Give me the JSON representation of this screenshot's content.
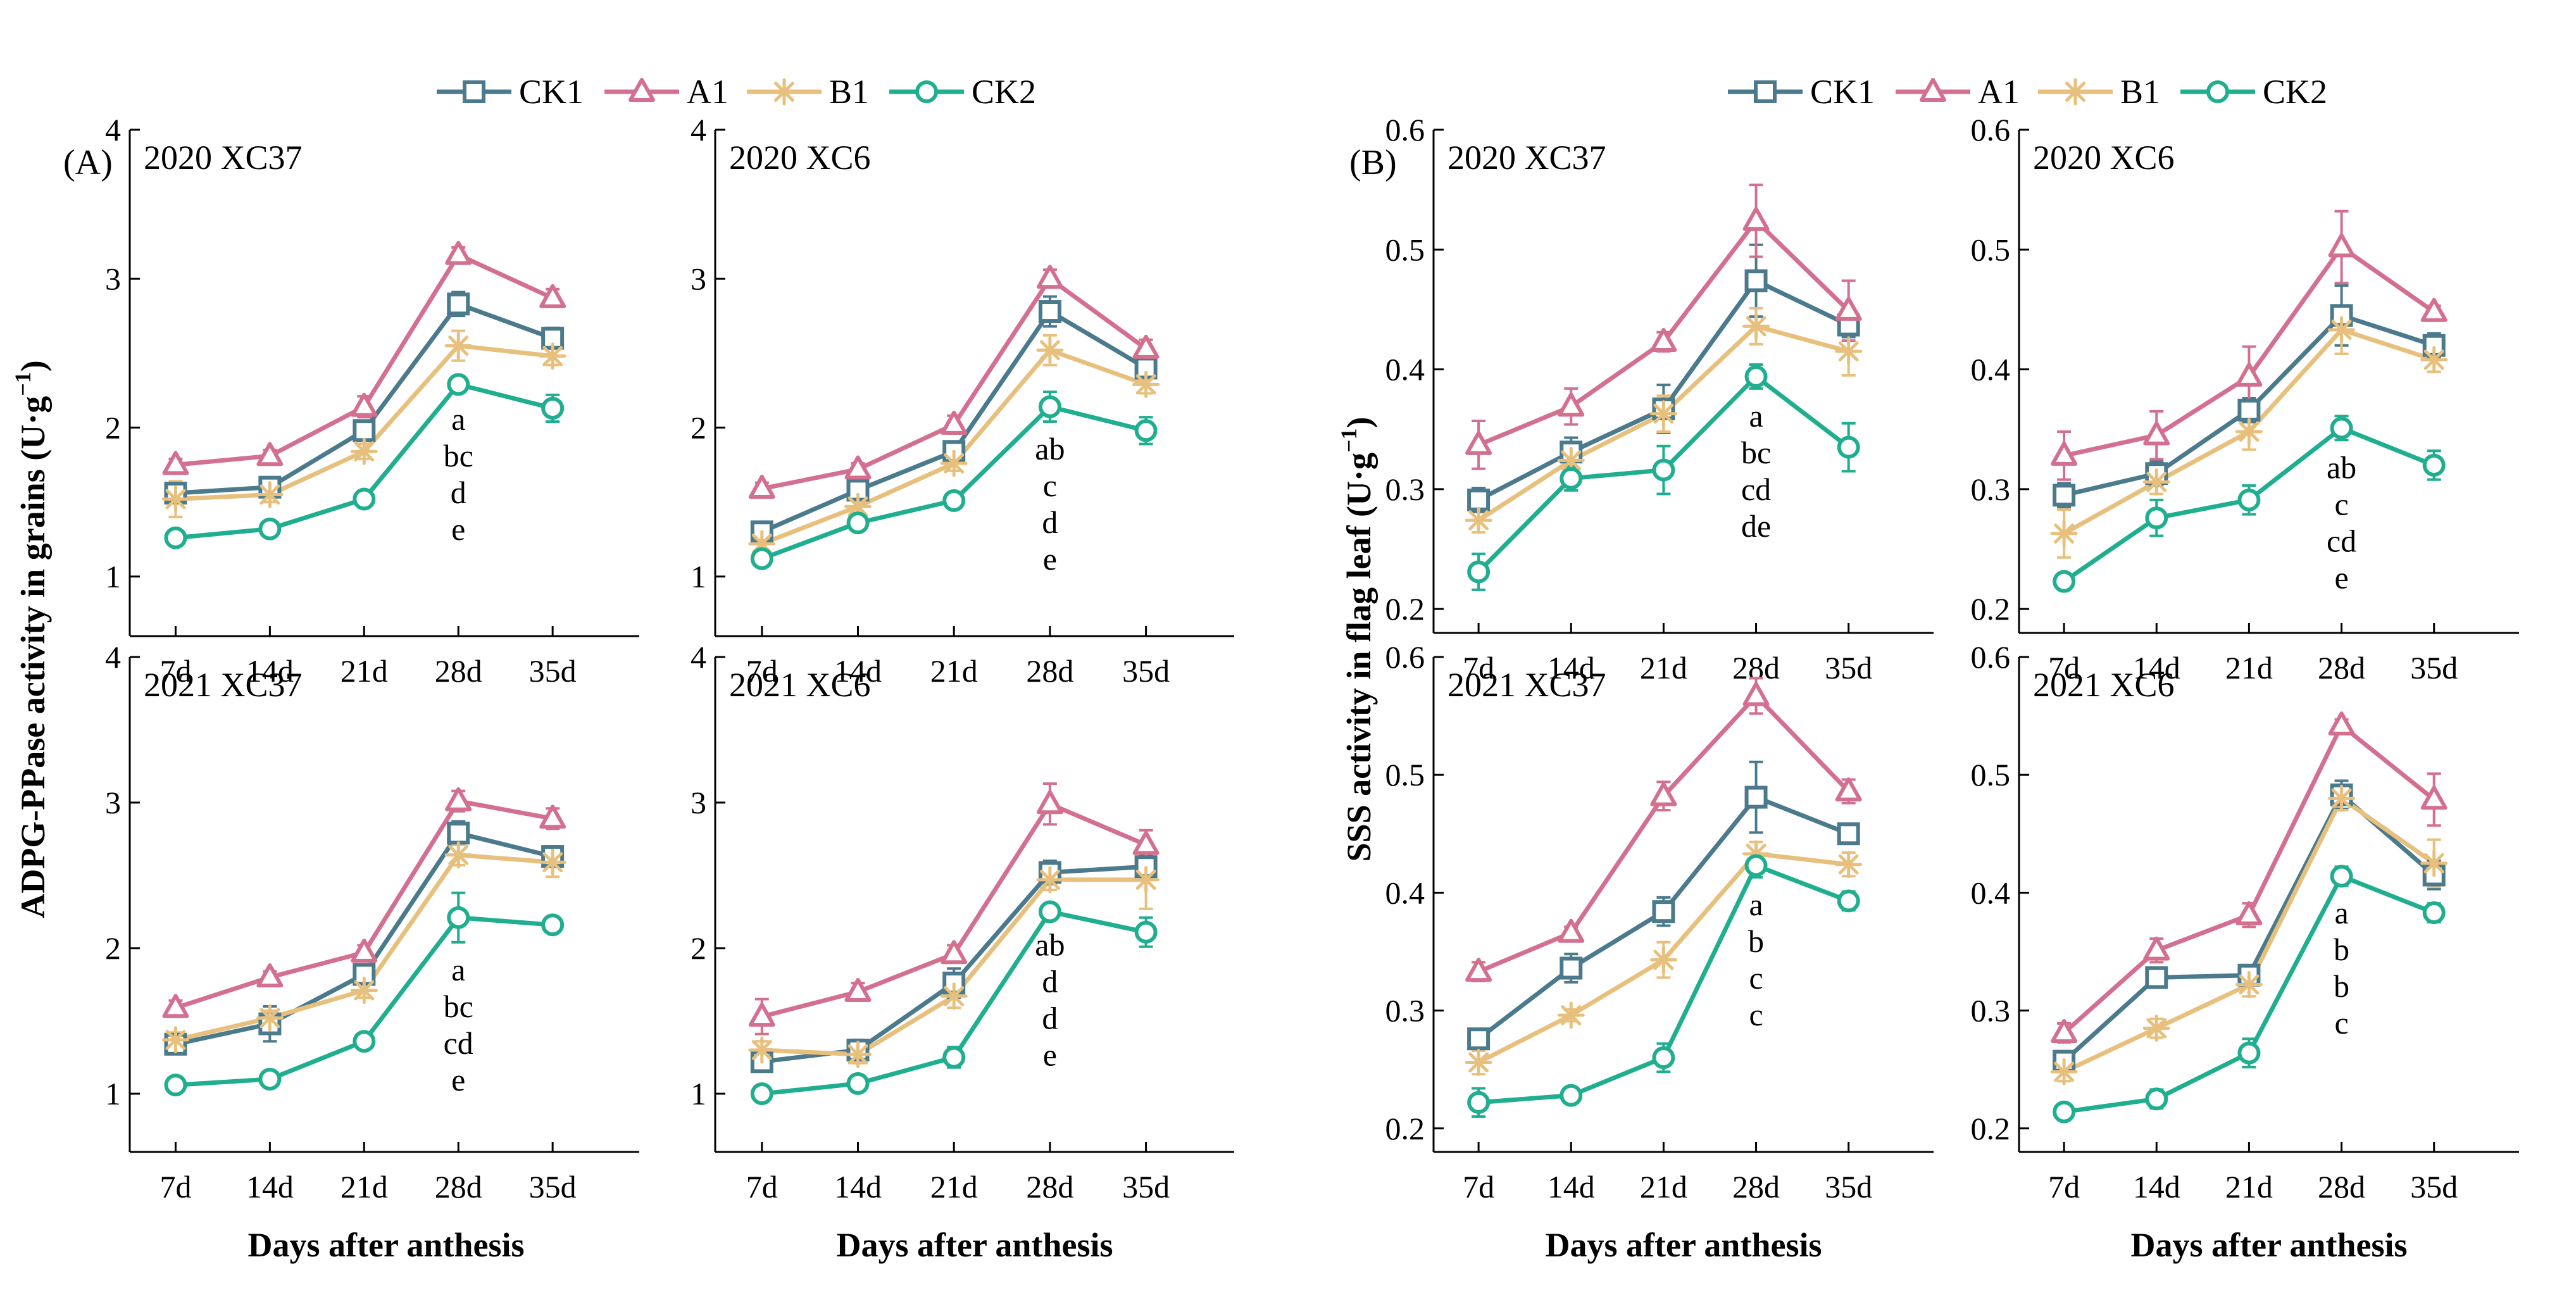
{
  "figure": {
    "left_ylabel": "ADPG-PPase activity in grains (U·g",
    "right_ylabel": "SSS activity in flag leaf (U·g",
    "ylabel_superscript": "−1",
    "ylabel_close": ")",
    "xlabel": "Days after anthesis",
    "groups": [
      {
        "letter": "(A)"
      },
      {
        "letter": "(B)"
      }
    ],
    "legend": [
      {
        "name": "CK1",
        "color": "#4a7a8c",
        "marker": "square"
      },
      {
        "name": "A1",
        "color": "#d4708f",
        "marker": "triangle"
      },
      {
        "name": "B1",
        "color": "#e8c07d",
        "marker": "asterisk"
      },
      {
        "name": "CK2",
        "color": "#1fae8f",
        "marker": "circle"
      }
    ]
  },
  "chart_data": [
    {
      "type": "line",
      "id": "A-2020-XC37",
      "title": "2020  XC37",
      "categories": [
        "7d",
        "14d",
        "21d",
        "28d",
        "35d"
      ],
      "ylim": [
        0.6,
        4
      ],
      "yticks": [
        "1",
        "2",
        "3",
        "4"
      ],
      "xlabel": "Days after anthesis",
      "ylabel": "ADPG-PPase activity in grains (U·g−1)",
      "series": [
        {
          "name": "CK1",
          "values": [
            1.56,
            1.6,
            1.98,
            2.83,
            2.6
          ],
          "errors": [
            0.05,
            0.05,
            0.06,
            0.08,
            0.07
          ]
        },
        {
          "name": "A1",
          "values": [
            1.75,
            1.81,
            2.14,
            3.16,
            2.87
          ],
          "errors": [
            0.04,
            0.04,
            0.07,
            0.05,
            0.06
          ]
        },
        {
          "name": "B1",
          "values": [
            1.52,
            1.55,
            1.84,
            2.55,
            2.48
          ],
          "errors": [
            0.12,
            0.05,
            0.05,
            0.1,
            0.06
          ]
        },
        {
          "name": "CK2",
          "values": [
            1.26,
            1.32,
            1.52,
            2.29,
            2.13
          ],
          "errors": [
            0.03,
            0.03,
            0.03,
            0.05,
            0.09
          ]
        }
      ],
      "significance": [
        "a",
        "bc",
        "d",
        "e"
      ]
    },
    {
      "type": "line",
      "id": "A-2020-XC6",
      "title": "2020  XC6",
      "categories": [
        "7d",
        "14d",
        "21d",
        "28d",
        "35d"
      ],
      "ylim": [
        0.6,
        4
      ],
      "yticks": [
        "1",
        "2",
        "3",
        "4"
      ],
      "xlabel": "Days after anthesis",
      "ylabel": "ADPG-PPase activity in grains (U·g−1)",
      "series": [
        {
          "name": "CK1",
          "values": [
            1.3,
            1.58,
            1.84,
            2.78,
            2.4
          ],
          "errors": [
            0.06,
            0.05,
            0.05,
            0.1,
            0.06
          ]
        },
        {
          "name": "A1",
          "values": [
            1.59,
            1.72,
            2.02,
            3.0,
            2.53
          ],
          "errors": [
            0.04,
            0.04,
            0.06,
            0.06,
            0.06
          ]
        },
        {
          "name": "B1",
          "values": [
            1.22,
            1.47,
            1.76,
            2.52,
            2.29
          ],
          "errors": [
            0.05,
            0.05,
            0.05,
            0.1,
            0.06
          ]
        },
        {
          "name": "CK2",
          "values": [
            1.12,
            1.36,
            1.51,
            2.14,
            1.98
          ],
          "errors": [
            0.04,
            0.04,
            0.04,
            0.1,
            0.09
          ]
        }
      ],
      "significance": [
        "ab",
        "c",
        "d",
        "e"
      ]
    },
    {
      "type": "line",
      "id": "A-2021-XC37",
      "title": "2021  XC37",
      "categories": [
        "7d",
        "14d",
        "21d",
        "28d",
        "35d"
      ],
      "ylim": [
        0.6,
        4
      ],
      "yticks": [
        "1",
        "2",
        "3",
        "4"
      ],
      "xlabel": "Days after anthesis",
      "ylabel": "ADPG-PPase activity in grains (U·g−1)",
      "series": [
        {
          "name": "CK1",
          "values": [
            1.34,
            1.48,
            1.82,
            2.79,
            2.63
          ],
          "errors": [
            0.06,
            0.12,
            0.05,
            0.08,
            0.07
          ]
        },
        {
          "name": "A1",
          "values": [
            1.59,
            1.8,
            1.97,
            3.01,
            2.89
          ],
          "errors": [
            0.05,
            0.04,
            0.05,
            0.07,
            0.07
          ]
        },
        {
          "name": "B1",
          "values": [
            1.37,
            1.52,
            1.71,
            2.64,
            2.59
          ],
          "errors": [
            0.05,
            0.05,
            0.05,
            0.07,
            0.1
          ]
        },
        {
          "name": "CK2",
          "values": [
            1.06,
            1.1,
            1.36,
            2.21,
            2.16
          ],
          "errors": [
            0.03,
            0.03,
            0.05,
            0.17,
            0.03
          ]
        }
      ],
      "significance": [
        "a",
        "bc",
        "cd",
        "e"
      ]
    },
    {
      "type": "line",
      "id": "A-2021-XC6",
      "title": "2021  XC6",
      "categories": [
        "7d",
        "14d",
        "21d",
        "28d",
        "35d"
      ],
      "ylim": [
        0.6,
        4
      ],
      "yticks": [
        "1",
        "2",
        "3",
        "4"
      ],
      "xlabel": "Days after anthesis",
      "ylabel": "ADPG-PPase activity in grains (U·g−1)",
      "series": [
        {
          "name": "CK1",
          "values": [
            1.22,
            1.3,
            1.76,
            2.52,
            2.56
          ],
          "errors": [
            0.05,
            0.07,
            0.1,
            0.08,
            0.08
          ]
        },
        {
          "name": "A1",
          "values": [
            1.53,
            1.7,
            1.96,
            2.99,
            2.71
          ],
          "errors": [
            0.12,
            0.06,
            0.06,
            0.14,
            0.1
          ]
        },
        {
          "name": "B1",
          "values": [
            1.3,
            1.27,
            1.67,
            2.47,
            2.47
          ],
          "errors": [
            0.06,
            0.06,
            0.08,
            0.07,
            0.2
          ]
        },
        {
          "name": "CK2",
          "values": [
            1.0,
            1.07,
            1.25,
            2.25,
            2.11
          ],
          "errors": [
            0.03,
            0.05,
            0.07,
            0.04,
            0.1
          ]
        }
      ],
      "significance": [
        "ab",
        "d",
        "d",
        "e"
      ]
    },
    {
      "type": "line",
      "id": "B-2020-XC37",
      "title": "2020  XC37",
      "categories": [
        "7d",
        "14d",
        "21d",
        "28d",
        "35d"
      ],
      "ylim": [
        0.18,
        0.6
      ],
      "yticks": [
        "0.2",
        "0.3",
        "0.4",
        "0.5",
        "0.6"
      ],
      "xlabel": "Days after anthesis",
      "ylabel": "SSS activity in flag leaf (U·g−1)",
      "series": [
        {
          "name": "CK1",
          "values": [
            0.291,
            0.331,
            0.367,
            0.474,
            0.437
          ],
          "errors": [
            0.01,
            0.012,
            0.02,
            0.03,
            0.01
          ]
        },
        {
          "name": "A1",
          "values": [
            0.337,
            0.369,
            0.423,
            0.524,
            0.449
          ],
          "errors": [
            0.02,
            0.015,
            0.008,
            0.03,
            0.025
          ]
        },
        {
          "name": "B1",
          "values": [
            0.274,
            0.324,
            0.363,
            0.436,
            0.415
          ],
          "errors": [
            0.01,
            0.012,
            0.015,
            0.015,
            0.02
          ]
        },
        {
          "name": "CK2",
          "values": [
            0.231,
            0.309,
            0.316,
            0.394,
            0.335
          ],
          "errors": [
            0.015,
            0.01,
            0.02,
            0.01,
            0.02
          ]
        }
      ],
      "significance": [
        "a",
        "bc",
        "cd",
        "de"
      ]
    },
    {
      "type": "line",
      "id": "B-2020-XC6",
      "title": "2020  XC6",
      "categories": [
        "7d",
        "14d",
        "21d",
        "28d",
        "35d"
      ],
      "ylim": [
        0.18,
        0.6
      ],
      "yticks": [
        "0.2",
        "0.3",
        "0.4",
        "0.5",
        "0.6"
      ],
      "xlabel": "Days after anthesis",
      "ylabel": "SSS activity in flag leaf (U·g−1)",
      "series": [
        {
          "name": "CK1",
          "values": [
            0.295,
            0.313,
            0.366,
            0.445,
            0.42
          ],
          "errors": [
            0.01,
            0.01,
            0.01,
            0.025,
            0.01
          ]
        },
        {
          "name": "A1",
          "values": [
            0.328,
            0.345,
            0.394,
            0.502,
            0.448
          ],
          "errors": [
            0.02,
            0.02,
            0.025,
            0.03,
            0.005
          ]
        },
        {
          "name": "B1",
          "values": [
            0.263,
            0.306,
            0.348,
            0.433,
            0.408
          ],
          "errors": [
            0.02,
            0.01,
            0.015,
            0.02,
            0.01
          ]
        },
        {
          "name": "CK2",
          "values": [
            0.223,
            0.276,
            0.291,
            0.351,
            0.32
          ],
          "errors": [
            0.005,
            0.015,
            0.012,
            0.01,
            0.012
          ]
        }
      ],
      "significance": [
        "ab",
        "c",
        "cd",
        "e"
      ]
    },
    {
      "type": "line",
      "id": "B-2021-XC37",
      "title": "2021  XC37",
      "categories": [
        "7d",
        "14d",
        "21d",
        "28d",
        "35d"
      ],
      "ylim": [
        0.18,
        0.6
      ],
      "yticks": [
        "0.2",
        "0.3",
        "0.4",
        "0.5",
        "0.6"
      ],
      "xlabel": "Days after anthesis",
      "ylabel": "SSS activity in flag leaf (U·g−1)",
      "series": [
        {
          "name": "CK1",
          "values": [
            0.276,
            0.336,
            0.384,
            0.481,
            0.45
          ],
          "errors": [
            0.008,
            0.012,
            0.012,
            0.03,
            0.008
          ]
        },
        {
          "name": "A1",
          "values": [
            0.333,
            0.366,
            0.482,
            0.567,
            0.486
          ],
          "errors": [
            0.008,
            0.005,
            0.012,
            0.015,
            0.01
          ]
        },
        {
          "name": "B1",
          "values": [
            0.256,
            0.296,
            0.343,
            0.433,
            0.424
          ],
          "errors": [
            0.01,
            0.005,
            0.015,
            0.01,
            0.01
          ]
        },
        {
          "name": "CK2",
          "values": [
            0.222,
            0.228,
            0.26,
            0.423,
            0.393
          ],
          "errors": [
            0.012,
            0.005,
            0.012,
            0.01,
            0.008
          ]
        }
      ],
      "significance": [
        "a",
        "b",
        "c",
        "c"
      ]
    },
    {
      "type": "line",
      "id": "B-2021-XC6",
      "title": "2021  XC6",
      "categories": [
        "7d",
        "14d",
        "21d",
        "28d",
        "35d"
      ],
      "ylim": [
        0.18,
        0.6
      ],
      "yticks": [
        "0.2",
        "0.3",
        "0.4",
        "0.5",
        "0.6"
      ],
      "xlabel": "Days after anthesis",
      "ylabel": "SSS activity in flag leaf (U·g−1)",
      "series": [
        {
          "name": "CK1",
          "values": [
            0.257,
            0.328,
            0.33,
            0.483,
            0.415
          ],
          "errors": [
            0.008,
            0.006,
            0.008,
            0.012,
            0.012
          ]
        },
        {
          "name": "A1",
          "values": [
            0.281,
            0.351,
            0.381,
            0.542,
            0.479
          ],
          "errors": [
            0.008,
            0.01,
            0.01,
            0.005,
            0.022
          ]
        },
        {
          "name": "B1",
          "values": [
            0.248,
            0.285,
            0.322,
            0.48,
            0.425
          ],
          "errors": [
            0.008,
            0.008,
            0.01,
            0.01,
            0.02
          ]
        },
        {
          "name": "CK2",
          "values": [
            0.214,
            0.225,
            0.264,
            0.414,
            0.383
          ],
          "errors": [
            0.005,
            0.008,
            0.012,
            0.008,
            0.008
          ]
        }
      ],
      "significance": [
        "a",
        "b",
        "b",
        "c"
      ]
    }
  ]
}
